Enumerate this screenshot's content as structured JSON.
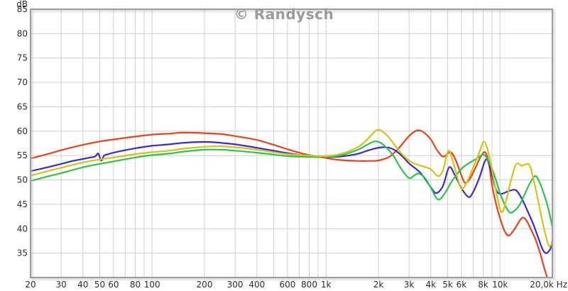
{
  "chart_data": {
    "type": "line",
    "title": "© Randysch",
    "x_scale": "log",
    "xlabel": "Hz",
    "ylabel": "dB",
    "xlim": [
      20,
      20000
    ],
    "ylim": [
      30,
      85
    ],
    "grid": true,
    "y_tick_step": 5,
    "y_axis_unit_label": "dB",
    "y_ticks": [
      {
        "v": 85,
        "label": "85"
      },
      {
        "v": 80,
        "label": "80"
      },
      {
        "v": 75,
        "label": "75"
      },
      {
        "v": 70,
        "label": "70"
      },
      {
        "v": 65,
        "label": "65"
      },
      {
        "v": 60,
        "label": "60"
      },
      {
        "v": 55,
        "label": "55"
      },
      {
        "v": 50,
        "label": "50"
      },
      {
        "v": 45,
        "label": "45"
      },
      {
        "v": 40,
        "label": "40"
      },
      {
        "v": 35,
        "label": "35"
      }
    ],
    "x_ticks": [
      {
        "f": 20,
        "label": "20"
      },
      {
        "f": 30,
        "label": "30"
      },
      {
        "f": 40,
        "label": "40"
      },
      {
        "f": 50,
        "label": "50"
      },
      {
        "f": 60,
        "label": "60"
      },
      {
        "f": 80,
        "label": "80"
      },
      {
        "f": 100,
        "label": "100"
      },
      {
        "f": 200,
        "label": "200"
      },
      {
        "f": 300,
        "label": "300"
      },
      {
        "f": 400,
        "label": "400"
      },
      {
        "f": 600,
        "label": "600"
      },
      {
        "f": 800,
        "label": "800"
      },
      {
        "f": 1000,
        "label": "1k"
      },
      {
        "f": 2000,
        "label": "2k"
      },
      {
        "f": 3000,
        "label": "3k"
      },
      {
        "f": 4000,
        "label": "4k"
      },
      {
        "f": 5000,
        "label": "5k"
      },
      {
        "f": 6000,
        "label": "6k"
      },
      {
        "f": 8000,
        "label": "8k"
      },
      {
        "f": 10000,
        "label": "10k"
      },
      {
        "f": 20000,
        "label": "20,0k Hz",
        "anchor": "end"
      }
    ],
    "x_gridlines": [
      20,
      30,
      40,
      50,
      60,
      70,
      80,
      90,
      100,
      200,
      300,
      400,
      500,
      600,
      700,
      800,
      900,
      1000,
      2000,
      3000,
      4000,
      5000,
      6000,
      7000,
      8000,
      9000,
      10000,
      20000
    ],
    "series": [
      {
        "name": "trace-red-orange",
        "color": "#e8431c",
        "points": [
          [
            20,
            54.4
          ],
          [
            25,
            55.3
          ],
          [
            30,
            56.1
          ],
          [
            40,
            57.2
          ],
          [
            50,
            57.9
          ],
          [
            60,
            58.3
          ],
          [
            80,
            58.9
          ],
          [
            100,
            59.3
          ],
          [
            125,
            59.5
          ],
          [
            150,
            59.7
          ],
          [
            200,
            59.6
          ],
          [
            250,
            59.4
          ],
          [
            300,
            59.0
          ],
          [
            400,
            58.2
          ],
          [
            500,
            57.2
          ],
          [
            600,
            56.3
          ],
          [
            700,
            55.6
          ],
          [
            800,
            55.1
          ],
          [
            1000,
            54.5
          ],
          [
            1200,
            54.1
          ],
          [
            1500,
            53.9
          ],
          [
            1800,
            53.9
          ],
          [
            2000,
            54.0
          ],
          [
            2300,
            54.7
          ],
          [
            2600,
            56.4
          ],
          [
            3000,
            59.0
          ],
          [
            3300,
            60.1
          ],
          [
            3600,
            59.9
          ],
          [
            4000,
            58.3
          ],
          [
            4300,
            56.4
          ],
          [
            4700,
            54.8
          ],
          [
            5200,
            55.7
          ],
          [
            5600,
            53.8
          ],
          [
            6000,
            50.9
          ],
          [
            6300,
            49.4
          ],
          [
            6700,
            50.2
          ],
          [
            7200,
            52.4
          ],
          [
            7700,
            54.6
          ],
          [
            8200,
            55.7
          ],
          [
            8600,
            53.6
          ],
          [
            9000,
            48.9
          ],
          [
            9500,
            45.0
          ],
          [
            10000,
            42.2
          ],
          [
            10600,
            39.6
          ],
          [
            11200,
            38.6
          ],
          [
            12000,
            39.7
          ],
          [
            13000,
            41.7
          ],
          [
            13600,
            42.3
          ],
          [
            14300,
            41.5
          ],
          [
            15000,
            40.0
          ],
          [
            16000,
            37.8
          ],
          [
            17000,
            35.0
          ],
          [
            18000,
            31.8
          ],
          [
            18700,
            30.0
          ]
        ]
      },
      {
        "name": "trace-blue",
        "color": "#3b2bce",
        "points": [
          [
            20,
            51.8
          ],
          [
            25,
            52.6
          ],
          [
            30,
            53.3
          ],
          [
            35,
            53.9
          ],
          [
            40,
            54.3
          ],
          [
            44,
            54.6
          ],
          [
            47,
            54.8
          ],
          [
            49,
            55.4
          ],
          [
            51,
            54.0
          ],
          [
            53,
            55.0
          ],
          [
            56,
            55.3
          ],
          [
            60,
            55.6
          ],
          [
            70,
            56.1
          ],
          [
            80,
            56.5
          ],
          [
            100,
            57.0
          ],
          [
            125,
            57.3
          ],
          [
            150,
            57.6
          ],
          [
            200,
            57.8
          ],
          [
            250,
            57.6
          ],
          [
            300,
            57.3
          ],
          [
            400,
            56.6
          ],
          [
            500,
            56.0
          ],
          [
            600,
            55.5
          ],
          [
            800,
            54.9
          ],
          [
            1000,
            54.7
          ],
          [
            1200,
            54.8
          ],
          [
            1500,
            55.3
          ],
          [
            1800,
            56.2
          ],
          [
            2100,
            56.7
          ],
          [
            2400,
            56.4
          ],
          [
            2700,
            55.1
          ],
          [
            3000,
            53.4
          ],
          [
            3500,
            51.4
          ],
          [
            4000,
            48.5
          ],
          [
            4300,
            47.3
          ],
          [
            4700,
            48.8
          ],
          [
            5100,
            52.6
          ],
          [
            5500,
            51.0
          ],
          [
            6000,
            48.3
          ],
          [
            6600,
            46.5
          ],
          [
            7000,
            47.5
          ],
          [
            7600,
            50.4
          ],
          [
            8300,
            54.2
          ],
          [
            8800,
            52.4
          ],
          [
            9300,
            48.9
          ],
          [
            9700,
            47.4
          ],
          [
            10300,
            47.2
          ],
          [
            11000,
            47.6
          ],
          [
            12000,
            48.0
          ],
          [
            12600,
            47.6
          ],
          [
            13500,
            45.8
          ],
          [
            14500,
            43.4
          ],
          [
            15500,
            41.0
          ],
          [
            16500,
            38.4
          ],
          [
            17500,
            35.9
          ],
          [
            18300,
            35.0
          ],
          [
            19000,
            35.3
          ],
          [
            19500,
            35.9
          ],
          [
            20000,
            37.5
          ]
        ]
      },
      {
        "name": "trace-green",
        "color": "#2cc352",
        "points": [
          [
            20,
            49.8
          ],
          [
            25,
            50.7
          ],
          [
            30,
            51.4
          ],
          [
            40,
            52.6
          ],
          [
            50,
            53.3
          ],
          [
            60,
            53.8
          ],
          [
            80,
            54.6
          ],
          [
            100,
            55.1
          ],
          [
            125,
            55.4
          ],
          [
            150,
            55.8
          ],
          [
            200,
            56.2
          ],
          [
            250,
            56.2
          ],
          [
            300,
            56.0
          ],
          [
            400,
            55.6
          ],
          [
            500,
            55.2
          ],
          [
            600,
            54.9
          ],
          [
            800,
            54.7
          ],
          [
            1000,
            54.7
          ],
          [
            1200,
            55.0
          ],
          [
            1500,
            56.1
          ],
          [
            1700,
            57.1
          ],
          [
            1900,
            57.9
          ],
          [
            2100,
            57.4
          ],
          [
            2400,
            55.3
          ],
          [
            2700,
            52.3
          ],
          [
            3000,
            50.4
          ],
          [
            3200,
            50.9
          ],
          [
            3400,
            51.3
          ],
          [
            3700,
            50.4
          ],
          [
            4000,
            48.4
          ],
          [
            4400,
            46.0
          ],
          [
            4800,
            47.2
          ],
          [
            5300,
            49.8
          ],
          [
            6000,
            52.3
          ],
          [
            6600,
            53.4
          ],
          [
            7200,
            54.2
          ],
          [
            8000,
            55.2
          ],
          [
            8500,
            54.2
          ],
          [
            9000,
            52.3
          ],
          [
            9500,
            49.9
          ],
          [
            10000,
            47.3
          ],
          [
            10700,
            44.8
          ],
          [
            11400,
            43.3
          ],
          [
            12200,
            43.8
          ],
          [
            13000,
            45.0
          ],
          [
            14000,
            47.4
          ],
          [
            15000,
            49.6
          ],
          [
            16000,
            50.8
          ],
          [
            17000,
            49.3
          ],
          [
            18000,
            46.8
          ],
          [
            19000,
            44.0
          ],
          [
            20000,
            40.3
          ]
        ]
      },
      {
        "name": "trace-yellow",
        "color": "#d2c411",
        "points": [
          [
            20,
            50.9
          ],
          [
            25,
            51.8
          ],
          [
            30,
            52.5
          ],
          [
            40,
            53.6
          ],
          [
            50,
            54.2
          ],
          [
            60,
            54.6
          ],
          [
            80,
            55.3
          ],
          [
            100,
            55.7
          ],
          [
            125,
            56.0
          ],
          [
            150,
            56.4
          ],
          [
            200,
            56.8
          ],
          [
            250,
            56.9
          ],
          [
            300,
            56.7
          ],
          [
            400,
            56.2
          ],
          [
            500,
            55.7
          ],
          [
            600,
            55.3
          ],
          [
            800,
            55.0
          ],
          [
            1000,
            54.9
          ],
          [
            1200,
            55.3
          ],
          [
            1500,
            56.6
          ],
          [
            1700,
            58.1
          ],
          [
            1900,
            59.9
          ],
          [
            2000,
            60.3
          ],
          [
            2100,
            60.0
          ],
          [
            2300,
            58.7
          ],
          [
            2600,
            56.2
          ],
          [
            2900,
            54.4
          ],
          [
            3200,
            53.4
          ],
          [
            3600,
            52.8
          ],
          [
            4000,
            52.2
          ],
          [
            4400,
            50.8
          ],
          [
            4700,
            52.0
          ],
          [
            5050,
            56.0
          ],
          [
            5400,
            53.4
          ],
          [
            5700,
            50.4
          ],
          [
            6000,
            48.2
          ],
          [
            6400,
            49.3
          ],
          [
            7000,
            52.5
          ],
          [
            7600,
            55.6
          ],
          [
            8100,
            57.9
          ],
          [
            8600,
            55.4
          ],
          [
            9000,
            52.0
          ],
          [
            9600,
            46.8
          ],
          [
            10200,
            43.4
          ],
          [
            10800,
            45.5
          ],
          [
            11500,
            49.6
          ],
          [
            12200,
            52.8
          ],
          [
            12700,
            53.4
          ],
          [
            13300,
            52.9
          ],
          [
            14000,
            53.2
          ],
          [
            14800,
            53.0
          ],
          [
            15500,
            50.4
          ],
          [
            16500,
            46.1
          ],
          [
            17500,
            41.6
          ],
          [
            18500,
            38.0
          ],
          [
            19200,
            36.4
          ],
          [
            20000,
            37.2
          ]
        ]
      }
    ]
  },
  "colors": {
    "background": "#ffffff",
    "grid": "#cfcfcf",
    "frame": "#9c9c9c",
    "tick_text": "#2b2b2b",
    "title_text": "#9b9b9b"
  }
}
